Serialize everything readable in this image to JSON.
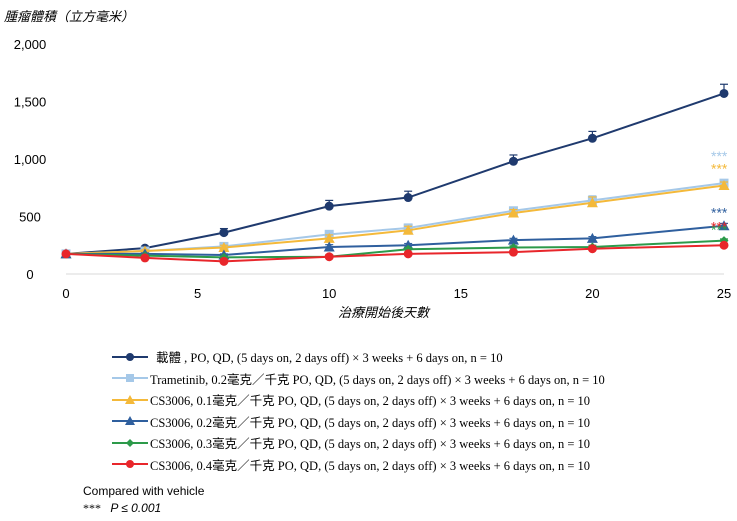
{
  "chart_data": {
    "type": "line",
    "ylabel": "腫瘤體積（立方毫米）",
    "xlabel": "治療開始後天數",
    "xlim": [
      0,
      25
    ],
    "ylim": [
      0,
      2000
    ],
    "x_ticks": [
      "0",
      "5",
      "10",
      "15",
      "20",
      "25"
    ],
    "y_ticks": [
      "0",
      "500",
      "1,000",
      "1,500",
      "2,000"
    ],
    "x": [
      0,
      3,
      6,
      10,
      13,
      17,
      20,
      25
    ],
    "series": [
      {
        "name": "載體 , PO, QD, (5 days on, 2 days off) × 3 weeks + 6 days on, n = 10",
        "color": "#1f3a6e",
        "marker": "circle",
        "values": [
          175,
          225,
          360,
          590,
          665,
          980,
          1180,
          1570
        ],
        "errors": [
          0,
          15,
          35,
          50,
          55,
          55,
          60,
          80
        ],
        "significance": ""
      },
      {
        "name": "Trametinib, 0.2毫克／千克 PO, QD, (5 days on, 2 days off) × 3 weeks + 6 days on, n = 10",
        "color": "#a5c8e8",
        "marker": "square",
        "values": [
          175,
          200,
          240,
          345,
          400,
          550,
          640,
          790
        ],
        "errors": [
          0,
          10,
          20,
          30,
          35,
          30,
          40,
          30
        ],
        "significance": "***"
      },
      {
        "name": "CS3006, 0.1毫克／千克 PO, QD, (5 days on, 2 days off) × 3 weeks + 6 days on, n = 10",
        "color": "#f4b93a",
        "marker": "triangle",
        "values": [
          175,
          200,
          230,
          310,
          380,
          530,
          620,
          770
        ],
        "errors": [
          0,
          10,
          20,
          30,
          35,
          30,
          50,
          30
        ],
        "significance": "***"
      },
      {
        "name": "CS3006, 0.2毫克／千克 PO, QD, (5 days on, 2 days off) × 3 weeks + 6 days on, n = 10",
        "color": "#2f5f9e",
        "marker": "triangle",
        "values": [
          175,
          175,
          165,
          235,
          250,
          295,
          310,
          420
        ],
        "errors": [
          0,
          8,
          10,
          20,
          15,
          15,
          15,
          20
        ],
        "significance": "***"
      },
      {
        "name": "CS3006, 0.3毫克／千克 PO, QD, (5 days on, 2 days off) × 3 weeks + 6 days on, n = 10",
        "color": "#2c9a4a",
        "marker": "diamond",
        "values": [
          175,
          160,
          145,
          150,
          215,
          230,
          235,
          290
        ],
        "errors": [
          0,
          8,
          10,
          15,
          15,
          15,
          15,
          15
        ],
        "significance": "***"
      },
      {
        "name": "CS3006, 0.4毫克／千克 PO, QD, (5 days on, 2 days off) × 3 weeks + 6 days on, n = 10",
        "color": "#e8262b",
        "marker": "circle",
        "values": [
          175,
          140,
          110,
          150,
          175,
          190,
          220,
          250
        ],
        "errors": [
          0,
          8,
          10,
          15,
          15,
          15,
          15,
          15
        ],
        "significance": "***"
      }
    ]
  },
  "footnote": {
    "compared": "Compared with vehicle",
    "stars": "***",
    "pvalue": "P ≤ 0.001"
  }
}
